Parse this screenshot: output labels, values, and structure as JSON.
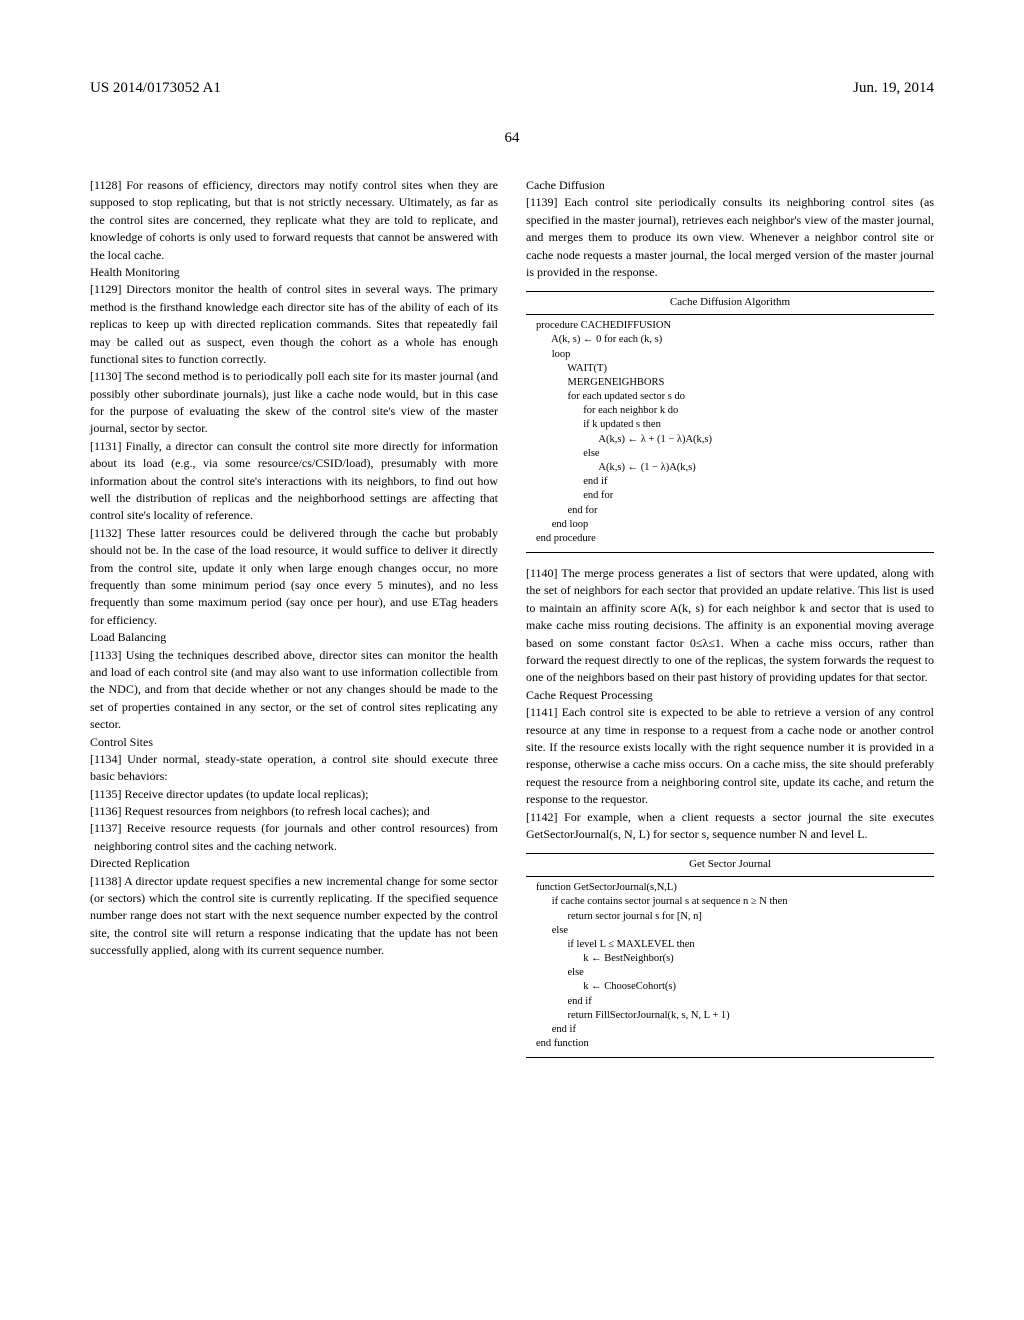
{
  "header": {
    "left": "US 2014/0173052 A1",
    "right": "Jun. 19, 2014",
    "pagenum": "64"
  },
  "left_col": {
    "p1128": "[1128]    For reasons of efficiency, directors may notify control sites when they are supposed to stop replicating, but that is not strictly necessary. Ultimately, as far as the control sites are concerned, they replicate what they are told to replicate, and knowledge of cohorts is only used to forward requests that cannot be answered with the local cache.",
    "h_health": "Health Monitoring",
    "p1129": "[1129]    Directors monitor the health of control sites in several ways. The primary method is the firsthand knowledge each director site has of the ability of each of its replicas to keep up with directed replication commands. Sites that repeatedly fail may be called out as suspect, even though the cohort as a whole has enough functional sites to function correctly.",
    "p1130": "[1130]    The second method is to periodically poll each site for its master journal (and possibly other subordinate journals), just like a cache node would, but in this case for the purpose of evaluating the skew of the control site's view of the master journal, sector by sector.",
    "p1131": "[1131]    Finally, a director can consult the control site more directly for information about its load (e.g., via some resource/cs/CSID/load), presumably with more information about the control site's interactions with its neighbors, to find out how well the distribution of replicas and the neighborhood settings are affecting that control site's locality of reference.",
    "p1132": "[1132]    These latter resources could be delivered through the cache but probably should not be. In the case of the load resource, it would suffice to deliver it directly from the control site, update it only when large enough changes occur, no more frequently than some minimum period (say once every 5 minutes), and no less frequently than some maximum period (say once per hour), and use ETag headers for efficiency.",
    "h_lb": "Load Balancing",
    "p1133": "[1133]    Using the techniques described above, director sites can monitor the health and load of each control site (and may also want to use information collectible from the NDC), and from that decide whether or not any changes should be made to the set of properties contained in any sector, or the set of control sites replicating any sector.",
    "h_cs": "Control Sites",
    "p1134": "[1134]    Under normal, steady-state operation, a control site should execute three basic behaviors:",
    "p1135": "[1135]    Receive director updates (to update local replicas);",
    "p1136": "[1136]    Request resources from neighbors (to refresh local caches); and",
    "p1137": "[1137]    Receive resource requests (for journals and other control resources) from neighboring control sites and the caching network.",
    "h_dr": "Directed Replication",
    "p1138": "[1138]    A director update request specifies a new incremental change for some sector (or sectors) which the control site is currently replicating. If the specified sequence number range does not start with the next sequence number expected by the control site, the control site will return a response indicating that the update has not been successfully applied, along with its current sequence number."
  },
  "right_col": {
    "h_cd": "Cache Diffusion",
    "p1139": "[1139]    Each control site periodically consults its neighboring control sites (as specified in the master journal), retrieves each neighbor's view of the master journal, and merges them to produce its own view. Whenever a neighbor control site or cache node requests a master journal, the local merged version of the master journal is provided in the response.",
    "algo1_title": "Cache Diffusion Algorithm",
    "algo1_body": "procedure CACHEDIFFUSION\n      A(k, s) ← 0 for each (k, s)\n      loop\n            WAIT(T)\n            MERGENEIGHBORS\n            for each updated sector s do\n                  for each neighbor k do\n                  if k updated s then\n                        A(k,s) ← λ + (1 − λ)A(k,s)\n                  else\n                        A(k,s) ← (1 − λ)A(k,s)\n                  end if\n                  end for\n            end for\n      end loop\nend procedure",
    "p1140": "[1140]    The merge process generates a list of sectors that were updated, along with the set of neighbors for each sector that provided an update relative. This list is used to maintain an affinity score A(k, s) for each neighbor k and sector that is used to make cache miss routing decisions. The affinity is an exponential moving average based on some constant factor 0≤λ≤1. When a cache miss occurs, rather than forward the request directly to one of the replicas, the system forwards the request to one of the neighbors based on their past history of providing updates for that sector.",
    "h_crp": "Cache Request Processing",
    "p1141": "[1141]    Each control site is expected to be able to retrieve a version of any control resource at any time in response to a request from a cache node or another control site. If the resource exists locally with the right sequence number it is provided in a response, otherwise a cache miss occurs. On a cache miss, the site should preferably request the resource from a neighboring control site, update its cache, and return the response to the requestor.",
    "p1142": "[1142]    For example, when a client requests a sector journal the site executes GetSectorJournal(s, N, L) for sector s, sequence number N and level L.",
    "algo2_title": "Get Sector Journal",
    "algo2_body": "function GetSectorJournal(s,N,L)\n      if cache contains sector journal s at sequence n ≥ N then\n            return sector journal s for [N, n]\n      else\n            if level L ≤ MAXLEVEL then\n                  k ← BestNeighbor(s)\n            else\n                  k ← ChooseCohort(s)\n            end if\n            return FillSectorJournal(k, s, N, L + 1)\n      end if\nend function"
  }
}
